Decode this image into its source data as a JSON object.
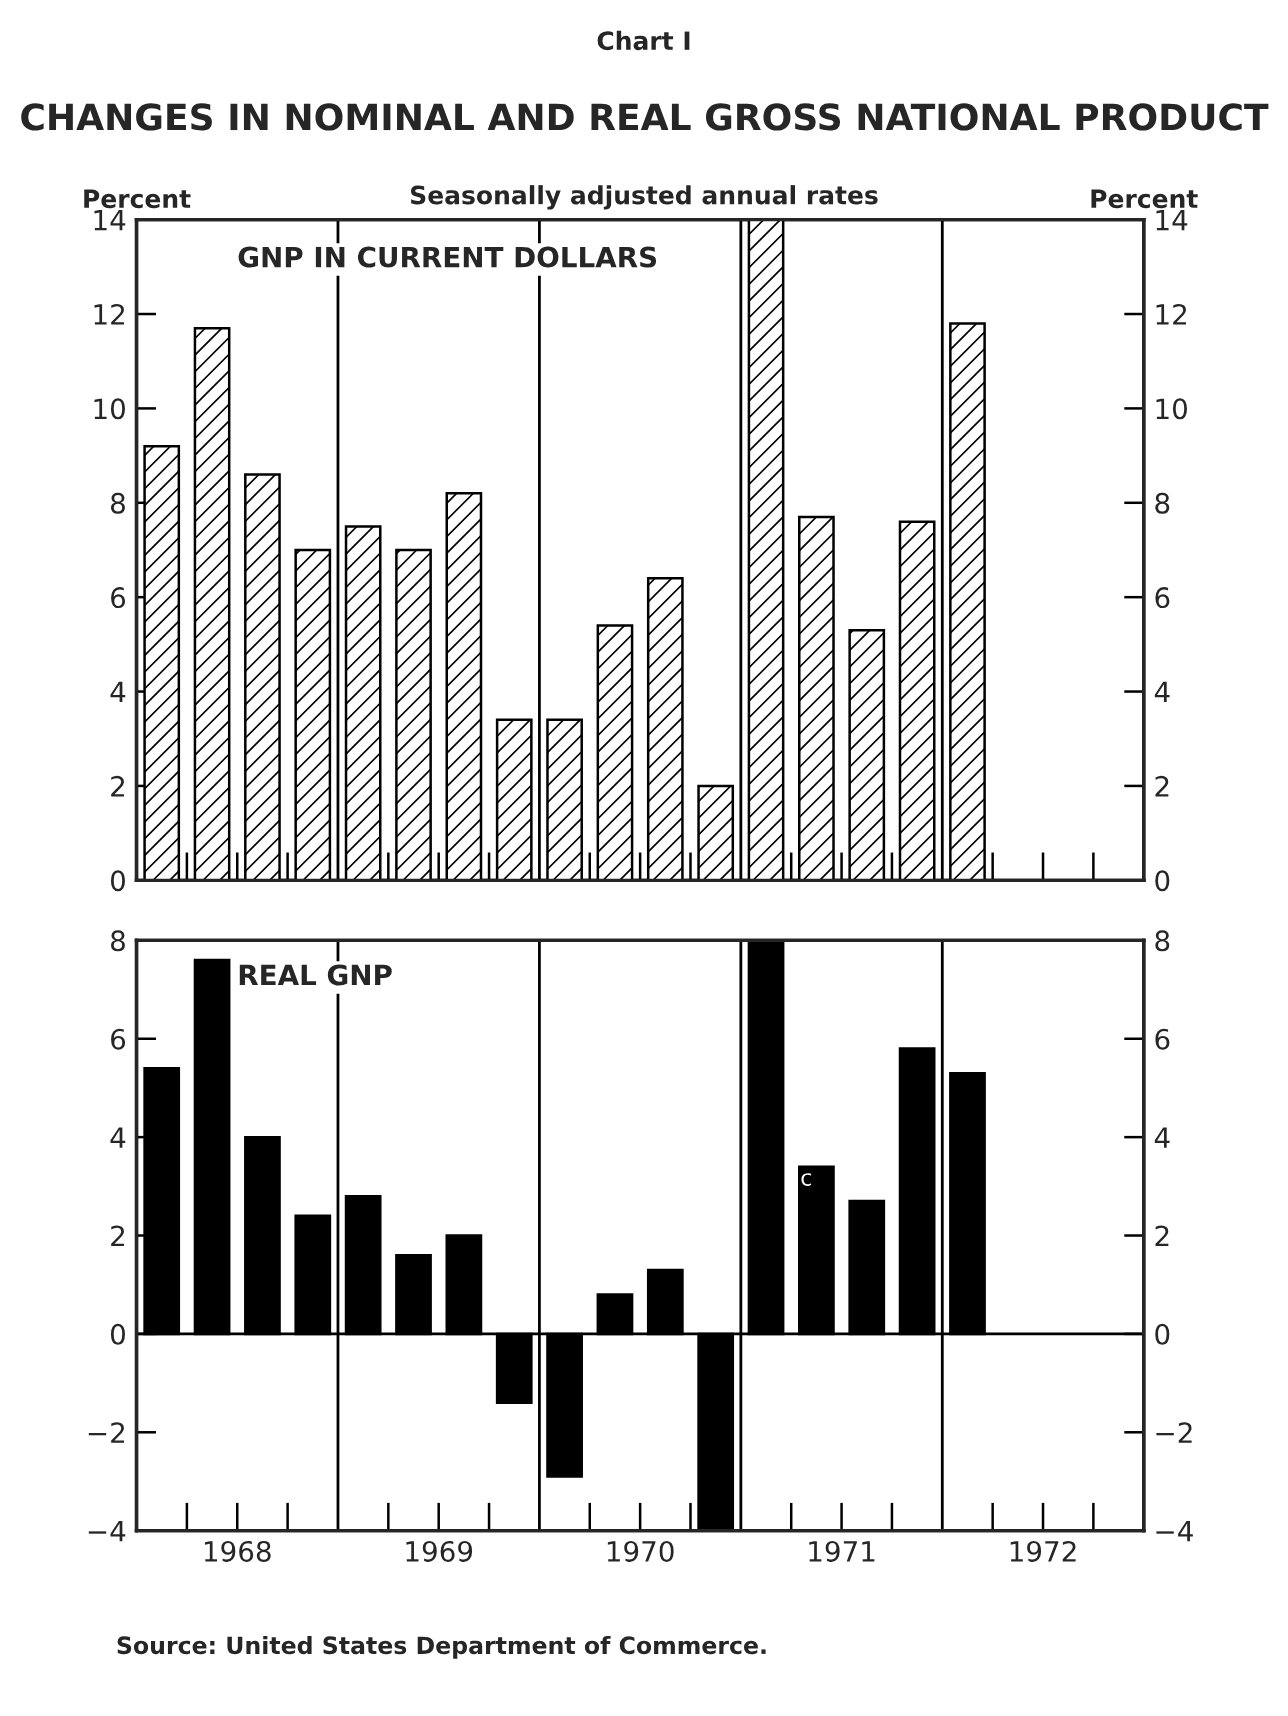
{
  "chart_data": [
    {
      "type": "bar",
      "title": "CHANGES IN NOMINAL AND REAL GROSS NATIONAL PRODUCT",
      "subtitle": "Seasonally adjusted annual rates",
      "ylabel": "Percent",
      "y2label": "Percent",
      "annotations": [
        "Chart I"
      ],
      "x": [
        1968.125,
        1968.375,
        1968.625,
        1968.875,
        1969.125,
        1969.375,
        1969.625,
        1969.875,
        1970.125,
        1970.375,
        1970.625,
        1970.875,
        1971.125,
        1971.375,
        1971.625,
        1971.875,
        1972.125
      ],
      "series": [
        {
          "name": "GNP IN CURRENT DOLLARS",
          "color": "#000000",
          "values": [
            9.2,
            11.7,
            8.6,
            7.0,
            7.5,
            7.0,
            8.2,
            3.4,
            3.4,
            5.4,
            6.4,
            2.0,
            14.0,
            7.7,
            5.3,
            7.6,
            11.8
          ]
        }
      ],
      "xlim": [
        1968,
        1973
      ],
      "xticks": [
        {
          "value": 1968.25,
          "label": null
        },
        {
          "value": 1968.5,
          "label": null
        },
        {
          "value": 1968.75,
          "label": null
        },
        {
          "value": 1969.25,
          "label": null
        },
        {
          "value": 1969.5,
          "label": null
        },
        {
          "value": 1969.75,
          "label": null
        },
        {
          "value": 1970.25,
          "label": null
        },
        {
          "value": 1970.5,
          "label": null
        },
        {
          "value": 1970.75,
          "label": null
        },
        {
          "value": 1971.25,
          "label": null
        },
        {
          "value": 1971.5,
          "label": null
        },
        {
          "value": 1971.75,
          "label": null
        },
        {
          "value": 1972.25,
          "label": null
        },
        {
          "value": 1972.5,
          "label": null
        },
        {
          "value": 1972.75,
          "label": null
        }
      ],
      "ylim": [
        0,
        14
      ],
      "yticks": [
        0,
        2,
        4,
        6,
        8,
        10,
        12,
        14
      ],
      "y2lim": [
        0,
        14
      ],
      "y2ticks": [
        0,
        2,
        4,
        6,
        8,
        10,
        12,
        14
      ],
      "ref_lines": [
        {
          "axis": "x",
          "value": 1969
        },
        {
          "axis": "x",
          "value": 1970
        },
        {
          "axis": "x",
          "value": 1971
        },
        {
          "axis": "x",
          "value": 1972
        }
      ],
      "tick_labels": "y",
      "legend": false,
      "grid": false
    },
    {
      "type": "bar",
      "annotations": [
        "c",
        "Source: United States Department of Commerce."
      ],
      "x": [
        1968.125,
        1968.375,
        1968.625,
        1968.875,
        1969.125,
        1969.375,
        1969.625,
        1969.875,
        1970.125,
        1970.375,
        1970.625,
        1970.875,
        1971.125,
        1971.375,
        1971.625,
        1971.875,
        1972.125
      ],
      "series": [
        {
          "name": "REAL GNP",
          "color": "#000000",
          "values": [
            5.4,
            7.6,
            4.0,
            2.4,
            2.8,
            1.6,
            2.0,
            -1.4,
            -2.9,
            0.8,
            1.3,
            -4.0,
            8.0,
            3.4,
            2.7,
            5.8,
            5.3
          ]
        }
      ],
      "xlim": [
        1968,
        1973
      ],
      "xticks": [
        {
          "value": 1968.25,
          "label": null
        },
        {
          "value": 1968.5,
          "label": "1968"
        },
        {
          "value": 1968.75,
          "label": null
        },
        {
          "value": 1969.25,
          "label": null
        },
        {
          "value": 1969.5,
          "label": "1969"
        },
        {
          "value": 1969.75,
          "label": null
        },
        {
          "value": 1970.25,
          "label": null
        },
        {
          "value": 1970.5,
          "label": "1970"
        },
        {
          "value": 1970.75,
          "label": null
        },
        {
          "value": 1971.25,
          "label": null
        },
        {
          "value": 1971.5,
          "label": "1971"
        },
        {
          "value": 1971.75,
          "label": null
        },
        {
          "value": 1972.25,
          "label": null
        },
        {
          "value": 1972.5,
          "label": "1972"
        },
        {
          "value": 1972.75,
          "label": null
        }
      ],
      "ylim": [
        -4,
        8
      ],
      "yticks": [
        -4,
        -2,
        0,
        2,
        4,
        6,
        8
      ],
      "y2lim": [
        -4,
        8
      ],
      "y2ticks": [
        -4,
        -2,
        0,
        2,
        4,
        6,
        8
      ],
      "ref_lines": [
        {
          "axis": "y",
          "value": 0
        },
        {
          "axis": "x",
          "value": 1969
        },
        {
          "axis": "x",
          "value": 1970
        },
        {
          "axis": "x",
          "value": 1971
        },
        {
          "axis": "x",
          "value": 1972
        }
      ],
      "legend": false,
      "grid": false
    }
  ]
}
